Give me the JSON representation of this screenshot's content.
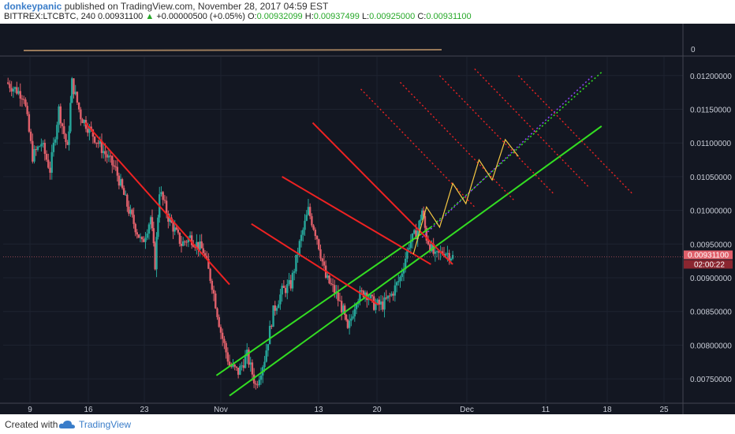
{
  "header": {
    "author": "donkeypanic",
    "published": "published on TradingView.com, November 28, 2017 04:59 EST",
    "symbol": "BITTREX:LTCBTC, 240",
    "last": "0.00931100",
    "change_arrow": "▲",
    "change": "+0.00000500 (+0.05%)",
    "o_label": "O:",
    "o": "0.00932099",
    "h_label": "H:",
    "h": "0.00937499",
    "l_label": "L:",
    "l": "0.00925000",
    "c_label": "C:",
    "c": "0.00931100"
  },
  "footer": {
    "created": "Created with",
    "brand": "TradingView"
  },
  "colors": {
    "background": "#131722",
    "up": "#26a69a",
    "down": "#e0606b",
    "channel": "#33dd22",
    "red": "#ee2222",
    "projection": "#f5c842",
    "purple": "#8844ee"
  },
  "chart_data": {
    "type": "candlestick",
    "symbol": "LTCBTC",
    "interval": "240",
    "x_ticks": [
      "9",
      "16",
      "23",
      "Nov",
      "13",
      "20",
      "Dec",
      "11",
      "18",
      "25"
    ],
    "y_ticks": [
      "0.01200000",
      "0.01150000",
      "0.01100000",
      "0.01050000",
      "0.01000000",
      "0.00950000",
      "0.00900000",
      "0.00850000",
      "0.00800000",
      "0.00750000"
    ],
    "ylim": [
      0.00715,
      0.01215
    ],
    "last_price": "0.00931100",
    "countdown": "02:00:22",
    "volume_pane_label": "0",
    "price_path": [
      [
        0,
        0.0119
      ],
      [
        4,
        0.0117
      ],
      [
        6,
        0.0108
      ],
      [
        8,
        0.011
      ],
      [
        10,
        0.0106
      ],
      [
        12,
        0.0115
      ],
      [
        14,
        0.0109
      ],
      [
        15,
        0.0119
      ],
      [
        17,
        0.0114
      ],
      [
        21,
        0.011
      ],
      [
        25,
        0.0106
      ],
      [
        28,
        0.01
      ],
      [
        31,
        0.0095
      ],
      [
        33,
        0.0099
      ],
      [
        34,
        0.0092
      ],
      [
        35,
        0.0103
      ],
      [
        37,
        0.0099
      ],
      [
        40,
        0.0095
      ],
      [
        42,
        0.0096
      ],
      [
        45,
        0.0094
      ],
      [
        47,
        0.0089
      ],
      [
        49,
        0.0082
      ],
      [
        51,
        0.0077
      ],
      [
        53,
        0.0076
      ],
      [
        55,
        0.00785
      ],
      [
        57,
        0.0074
      ],
      [
        59,
        0.0078
      ],
      [
        61,
        0.0085
      ],
      [
        63,
        0.0088
      ],
      [
        65,
        0.0089
      ],
      [
        67,
        0.0095
      ],
      [
        69,
        0.01
      ],
      [
        71,
        0.0096
      ],
      [
        73,
        0.009
      ],
      [
        75,
        0.0088
      ],
      [
        77,
        0.0085
      ],
      [
        78,
        0.0082
      ],
      [
        80,
        0.0087
      ],
      [
        82,
        0.0088
      ],
      [
        84,
        0.0086
      ],
      [
        86,
        0.0086
      ],
      [
        88,
        0.00875
      ],
      [
        90,
        0.009
      ],
      [
        92,
        0.0095
      ],
      [
        94,
        0.0097
      ],
      [
        95,
        0.01
      ],
      [
        96,
        0.0096
      ],
      [
        98,
        0.0093
      ],
      [
        100,
        0.0094
      ],
      [
        102,
        0.00931
      ]
    ],
    "annotations": [
      {
        "type": "trendline",
        "color": "green",
        "from": [
          51,
          0.00725
        ],
        "to": [
          136,
          0.01125
        ]
      },
      {
        "type": "trendline",
        "color": "green",
        "from": [
          48,
          0.00755
        ],
        "to": [
          97,
          0.00975
        ]
      },
      {
        "type": "trendline",
        "color": "red",
        "from": [
          18,
          0.0113
        ],
        "to": [
          51,
          0.0089
        ]
      },
      {
        "type": "trendline",
        "color": "red",
        "from": [
          56,
          0.0098
        ],
        "to": [
          85,
          0.0086
        ]
      },
      {
        "type": "trendline",
        "color": "red",
        "from": [
          63,
          0.0105
        ],
        "to": [
          97,
          0.0092
        ]
      },
      {
        "type": "trendline",
        "color": "red",
        "from": [
          70,
          0.0113
        ],
        "to": [
          102,
          0.0092
        ]
      },
      {
        "type": "trendline_dotted",
        "color": "red",
        "count": 5
      },
      {
        "type": "trendline_dotted",
        "color": "green",
        "from": [
          97,
          0.00975
        ],
        "to": [
          136,
          0.01205
        ]
      },
      {
        "type": "trendline_dotted",
        "color": "purple",
        "from": [
          95,
          0.0096
        ],
        "to": [
          134,
          0.012
        ]
      },
      {
        "type": "projection_zigzag",
        "color": "yellow",
        "points": [
          [
            93,
            0.00935
          ],
          [
            96,
            0.01005
          ],
          [
            99,
            0.00975
          ],
          [
            102,
            0.0104
          ],
          [
            105,
            0.0101
          ],
          [
            108,
            0.01075
          ],
          [
            111,
            0.01045
          ],
          [
            114,
            0.01105
          ],
          [
            117,
            0.0108
          ]
        ]
      }
    ]
  }
}
